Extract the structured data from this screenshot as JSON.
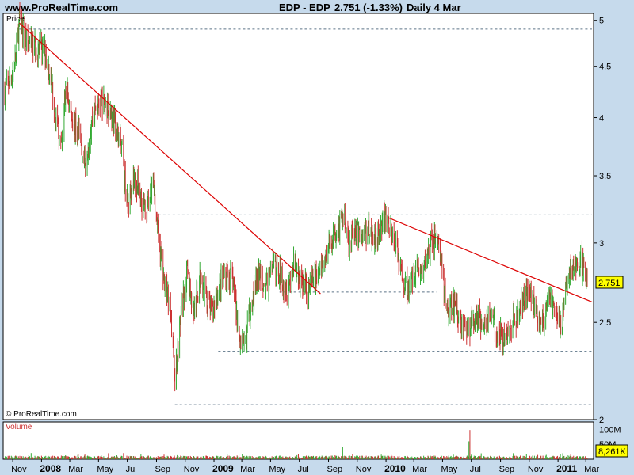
{
  "header": {
    "site": "www.ProRealTime.com",
    "instrument": "EDP - EDP",
    "last": "2.751 (-1.33%)",
    "period": "Daily  4 Mar"
  },
  "price_panel": {
    "label": "Price",
    "copyright": "© ProRealTime.com",
    "price_tag": "2.751"
  },
  "volume_panel": {
    "label": "Volume",
    "volume_tag": "8,261K"
  },
  "colors": {
    "background": "#c6daec",
    "panel": "#ffffff",
    "up": "#33aa33",
    "down": "#cc3333",
    "trendline": "#dd0000",
    "price_tag": "#ffff00"
  },
  "chart_data": {
    "type": "candlestick",
    "title": "EDP - EDP",
    "x_start": "2007-10-15",
    "x_end": "2011-03-04",
    "ylim": [
      2.0,
      5.08
    ],
    "y_scale": "log",
    "y_ticks": [
      {
        "value": 5,
        "label": "5"
      },
      {
        "value": 4.5,
        "label": "4.5"
      },
      {
        "value": 4,
        "label": "4"
      },
      {
        "value": 3.5,
        "label": "3.5"
      },
      {
        "value": 3,
        "label": "3"
      },
      {
        "value": 2.5,
        "label": "2.5"
      },
      {
        "value": 2,
        "label": "2"
      }
    ],
    "x_ticks": [
      {
        "date": "2007-11-01",
        "label": "Nov",
        "bold": false
      },
      {
        "date": "2008-01-01",
        "label": "2008",
        "bold": true
      },
      {
        "date": "2008-03-01",
        "label": "Mar",
        "bold": false
      },
      {
        "date": "2008-05-01",
        "label": "May",
        "bold": false
      },
      {
        "date": "2008-07-01",
        "label": "Jul",
        "bold": false
      },
      {
        "date": "2008-09-01",
        "label": "Sep",
        "bold": false
      },
      {
        "date": "2008-11-01",
        "label": "Nov",
        "bold": false
      },
      {
        "date": "2009-01-01",
        "label": "2009",
        "bold": true
      },
      {
        "date": "2009-03-01",
        "label": "Mar",
        "bold": false
      },
      {
        "date": "2009-05-01",
        "label": "May",
        "bold": false
      },
      {
        "date": "2009-07-01",
        "label": "Jul",
        "bold": false
      },
      {
        "date": "2009-09-01",
        "label": "Sep",
        "bold": false
      },
      {
        "date": "2009-11-01",
        "label": "Nov",
        "bold": false
      },
      {
        "date": "2010-01-01",
        "label": "2010",
        "bold": true
      },
      {
        "date": "2010-03-01",
        "label": "Mar",
        "bold": false
      },
      {
        "date": "2010-05-01",
        "label": "May",
        "bold": false
      },
      {
        "date": "2010-07-01",
        "label": "Jul",
        "bold": false
      },
      {
        "date": "2010-09-01",
        "label": "Sep",
        "bold": false
      },
      {
        "date": "2010-11-01",
        "label": "Nov",
        "bold": false
      },
      {
        "date": "2011-01-01",
        "label": "2011",
        "bold": true
      },
      {
        "date": "2011-03-01",
        "label": "Mar",
        "bold": false
      }
    ],
    "price_path": [
      [
        "2007-10-15",
        4.25
      ],
      [
        "2007-10-29",
        4.4
      ],
      [
        "2007-11-08",
        4.6
      ],
      [
        "2007-11-15",
        5.0
      ],
      [
        "2007-12-01",
        4.75
      ],
      [
        "2007-12-20",
        4.7
      ],
      [
        "2008-01-10",
        4.65
      ],
      [
        "2008-01-22",
        4.35
      ],
      [
        "2008-02-01",
        4.0
      ],
      [
        "2008-02-12",
        3.7
      ],
      [
        "2008-02-22",
        4.3
      ],
      [
        "2008-03-05",
        4.0
      ],
      [
        "2008-03-20",
        3.85
      ],
      [
        "2008-04-02",
        3.6
      ],
      [
        "2008-04-20",
        4.05
      ],
      [
        "2008-05-05",
        4.15
      ],
      [
        "2008-05-20",
        4.1
      ],
      [
        "2008-06-05",
        3.95
      ],
      [
        "2008-06-20",
        3.7
      ],
      [
        "2008-07-02",
        3.25
      ],
      [
        "2008-07-12",
        3.5
      ],
      [
        "2008-07-25",
        3.4
      ],
      [
        "2008-08-10",
        3.2
      ],
      [
        "2008-08-25",
        3.45
      ],
      [
        "2008-09-05",
        3.05
      ],
      [
        "2008-09-20",
        2.7
      ],
      [
        "2008-10-01",
        2.6
      ],
      [
        "2008-10-10",
        2.2
      ],
      [
        "2008-10-25",
        2.6
      ],
      [
        "2008-11-05",
        2.8
      ],
      [
        "2008-11-20",
        2.55
      ],
      [
        "2008-12-05",
        2.8
      ],
      [
        "2008-12-15",
        2.65
      ],
      [
        "2008-12-28",
        2.55
      ],
      [
        "2009-01-10",
        2.7
      ],
      [
        "2009-01-25",
        2.8
      ],
      [
        "2009-02-10",
        2.75
      ],
      [
        "2009-02-22",
        2.45
      ],
      [
        "2009-03-05",
        2.35
      ],
      [
        "2009-03-20",
        2.6
      ],
      [
        "2009-04-05",
        2.8
      ],
      [
        "2009-04-20",
        2.7
      ],
      [
        "2009-05-05",
        2.85
      ],
      [
        "2009-05-20",
        2.8
      ],
      [
        "2009-06-05",
        2.7
      ],
      [
        "2009-06-20",
        2.85
      ],
      [
        "2009-07-05",
        2.75
      ],
      [
        "2009-07-20",
        2.7
      ],
      [
        "2009-08-05",
        2.78
      ],
      [
        "2009-08-20",
        2.85
      ],
      [
        "2009-09-05",
        3.0
      ],
      [
        "2009-09-20",
        3.1
      ],
      [
        "2009-10-05",
        3.18
      ],
      [
        "2009-10-15",
        3.0
      ],
      [
        "2009-10-25",
        3.1
      ],
      [
        "2009-11-10",
        3.05
      ],
      [
        "2009-11-25",
        3.08
      ],
      [
        "2009-12-10",
        3.05
      ],
      [
        "2009-12-25",
        3.15
      ],
      [
        "2010-01-05",
        3.18
      ],
      [
        "2010-01-15",
        3.05
      ],
      [
        "2010-01-25",
        2.95
      ],
      [
        "2010-02-05",
        2.75
      ],
      [
        "2010-02-20",
        2.7
      ],
      [
        "2010-03-05",
        2.85
      ],
      [
        "2010-03-20",
        2.8
      ],
      [
        "2010-04-05",
        3.0
      ],
      [
        "2010-04-20",
        3.05
      ],
      [
        "2010-05-01",
        2.8
      ],
      [
        "2010-05-10",
        2.55
      ],
      [
        "2010-05-25",
        2.6
      ],
      [
        "2010-06-10",
        2.5
      ],
      [
        "2010-06-25",
        2.45
      ],
      [
        "2010-07-10",
        2.55
      ],
      [
        "2010-07-25",
        2.5
      ],
      [
        "2010-08-10",
        2.55
      ],
      [
        "2010-08-25",
        2.45
      ],
      [
        "2010-09-10",
        2.4
      ],
      [
        "2010-09-25",
        2.5
      ],
      [
        "2010-10-10",
        2.55
      ],
      [
        "2010-10-20",
        2.65
      ],
      [
        "2010-11-01",
        2.72
      ],
      [
        "2010-11-15",
        2.55
      ],
      [
        "2010-12-01",
        2.5
      ],
      [
        "2010-12-15",
        2.65
      ],
      [
        "2010-12-28",
        2.55
      ],
      [
        "2011-01-10",
        2.5
      ],
      [
        "2011-01-20",
        2.75
      ],
      [
        "2011-02-01",
        2.85
      ],
      [
        "2011-02-10",
        2.8
      ],
      [
        "2011-02-18",
        2.88
      ],
      [
        "2011-03-04",
        2.751
      ]
    ],
    "trendlines": [
      {
        "from": [
          "2007-11-15",
          4.97
        ],
        "to": [
          "2009-08-15",
          2.67
        ],
        "color": "#dd0000"
      },
      {
        "from": [
          "2010-01-05",
          3.18
        ],
        "to": [
          "2011-03-14",
          2.62
        ],
        "color": "#dd0000"
      }
    ],
    "support_levels": [
      {
        "value": 4.9,
        "from": "2007-11-15",
        "to": "2011-03-14"
      },
      {
        "value": 3.2,
        "from": "2008-09-05",
        "to": "2011-03-14"
      },
      {
        "value": 2.68,
        "from": "2009-05-20",
        "to": "2010-04-20"
      },
      {
        "value": 2.34,
        "from": "2009-01-10",
        "to": "2011-03-14"
      },
      {
        "value": 2.07,
        "from": "2008-10-10",
        "to": "2011-03-14"
      }
    ],
    "volume": {
      "ylim": [
        0,
        125
      ],
      "y_ticks": [
        {
          "value": 100,
          "label": "100M"
        },
        {
          "value": 50,
          "label": "50M"
        }
      ],
      "last_value": 8.261,
      "spikes": [
        {
          "date": "2009-10-01",
          "value": 42
        },
        {
          "date": "2010-06-28",
          "value": 98
        },
        {
          "date": "2010-06-26",
          "value": 60
        }
      ]
    }
  }
}
